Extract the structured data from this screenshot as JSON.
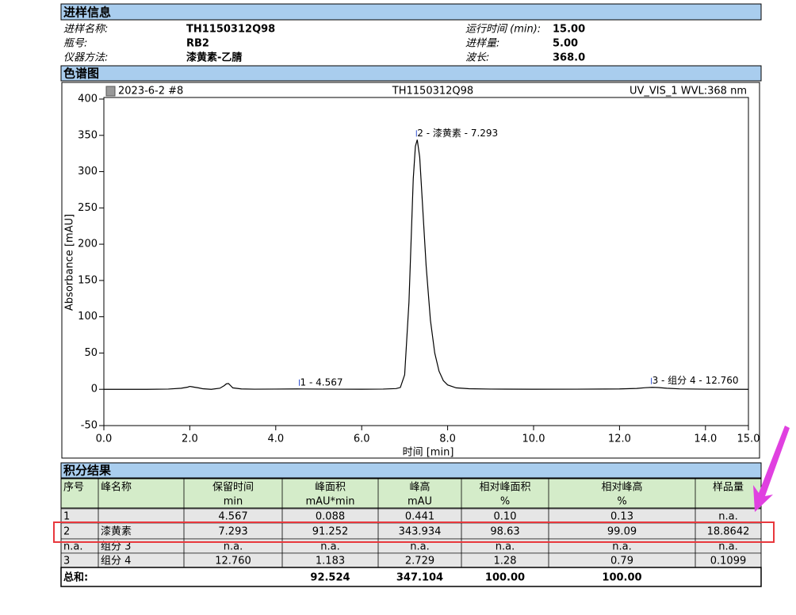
{
  "sections": {
    "sample": "进样信息",
    "chromatogram": "色谱图",
    "results": "积分结果"
  },
  "sample_info": {
    "left": [
      {
        "label": "进样名称:",
        "value": "TH1150312Q98"
      },
      {
        "label": "瓶号:",
        "value": "RB2"
      },
      {
        "label": "仪器方法:",
        "value": "漆黄素-乙腈"
      }
    ],
    "right": [
      {
        "label": "运行时间 (min):",
        "value": "15.00"
      },
      {
        "label": "进样量:",
        "value": "5.00"
      },
      {
        "label": "波长:",
        "value": "368.0"
      }
    ]
  },
  "chart_data": {
    "type": "line",
    "header_left": "2023-6-2 #8",
    "title": "TH1150312Q98",
    "header_right": "UV_VIS_1 WVL:368 nm",
    "x_label": "时间 [min]",
    "y_label": "Absorbance [mAU]",
    "xlim": [
      0,
      15
    ],
    "ylim": [
      -50,
      400
    ],
    "xticks": [
      {
        "value": 0,
        "label": "0.0"
      },
      {
        "value": 2,
        "label": "2.0"
      },
      {
        "value": 4,
        "label": "4.0"
      },
      {
        "value": 6,
        "label": "6.0"
      },
      {
        "value": 8,
        "label": "8.0"
      },
      {
        "value": 10,
        "label": "10.0"
      },
      {
        "value": 12,
        "label": "12.0"
      },
      {
        "value": 14,
        "label": "14.0"
      },
      {
        "value": 15,
        "label": "15.0"
      }
    ],
    "yticks": [
      -50,
      0,
      50,
      100,
      150,
      200,
      250,
      300,
      350,
      400
    ],
    "x": [
      0,
      0.5,
      1.0,
      1.5,
      1.8,
      1.95,
      2.0,
      2.05,
      2.1,
      2.2,
      2.3,
      2.5,
      2.7,
      2.8,
      2.85,
      2.9,
      2.95,
      3.0,
      3.2,
      3.5,
      4,
      4.5,
      5,
      5.5,
      6,
      6.5,
      6.8,
      6.9,
      7.0,
      7.1,
      7.2,
      7.25,
      7.293,
      7.35,
      7.4,
      7.5,
      7.6,
      7.7,
      7.8,
      7.9,
      8.0,
      8.2,
      8.5,
      9,
      10,
      11,
      12,
      12.4,
      12.6,
      12.76,
      12.9,
      13.1,
      13.4,
      14,
      15
    ],
    "series": [
      {
        "color": "#000000",
        "values": [
          0,
          0,
          0,
          0.3,
          1.5,
          3,
          4,
          3.5,
          3,
          2,
          0.8,
          0,
          1.5,
          5,
          7.5,
          8,
          5,
          2,
          0.5,
          0.2,
          0.3,
          0.5,
          0.3,
          0.2,
          0.1,
          0.3,
          1,
          2.5,
          20,
          120,
          290,
          335,
          343.934,
          320,
          270,
          170,
          95,
          50,
          25,
          12,
          6,
          2,
          0.8,
          0.3,
          0.1,
          0.2,
          0.5,
          1.2,
          2.2,
          2.729,
          2.4,
          1.5,
          0.6,
          0.2,
          0
        ]
      }
    ],
    "annotations": [
      {
        "text": "1 - 4.567",
        "x": 4.567,
        "y": 0.441
      },
      {
        "text": "2 - 漆黄素 - 7.293",
        "x": 7.293,
        "y": 343.934
      },
      {
        "text": "3 - 组分 4 - 12.760",
        "x": 12.76,
        "y": 2.729
      }
    ]
  },
  "table": {
    "columns": [
      {
        "name": "序号"
      },
      {
        "name": "峰名称"
      },
      {
        "name": "保留时间",
        "unit": "min"
      },
      {
        "name": "峰面积",
        "unit": "mAU*min"
      },
      {
        "name": "峰高",
        "unit": "mAU"
      },
      {
        "name": "相对峰面积",
        "unit": "%"
      },
      {
        "name": "相对峰高",
        "unit": "%"
      },
      {
        "name": "样品量"
      }
    ],
    "rows": [
      [
        "1",
        null,
        "4.567",
        "0.088",
        "0.441",
        "0.10",
        "0.13",
        "n.a."
      ],
      [
        "2",
        "漆黄素",
        "7.293",
        "91.252",
        "343.934",
        "98.63",
        "99.09",
        "18.8642"
      ],
      [
        "n.a.",
        "组分 3",
        "n.a.",
        "n.a.",
        "n.a.",
        "n.a.",
        "n.a.",
        "n.a."
      ],
      [
        "3",
        "组分 4",
        "12.760",
        "1.183",
        "2.729",
        "1.28",
        "0.79",
        "0.1099"
      ]
    ],
    "total": [
      "总和:",
      null,
      null,
      "92.524",
      "347.104",
      "100.00",
      "100.00",
      null
    ]
  }
}
